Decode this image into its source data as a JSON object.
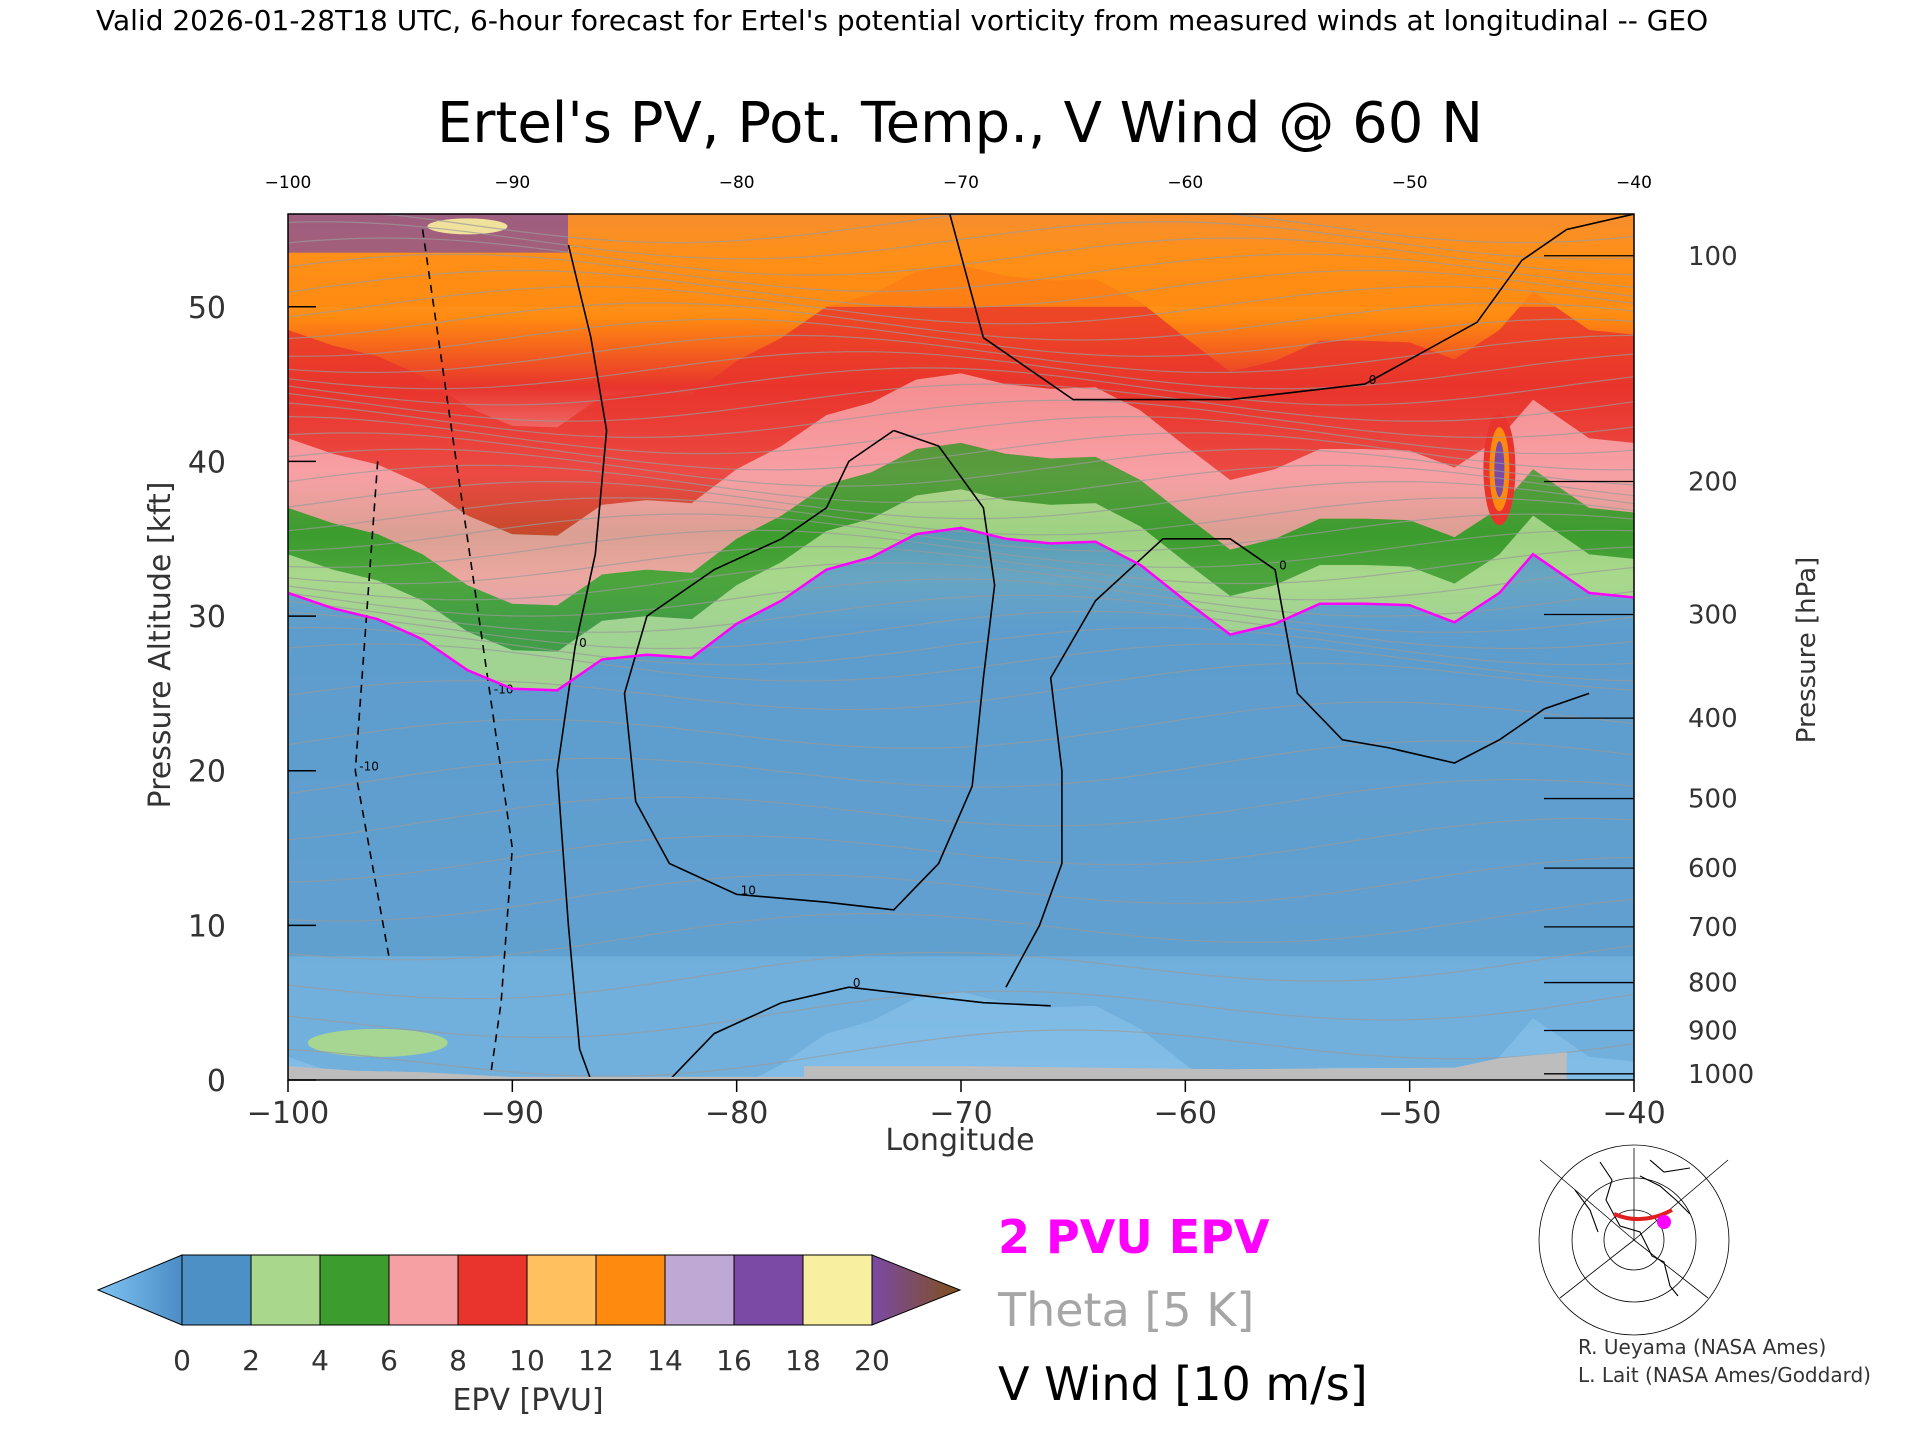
{
  "header": {
    "valid_line": "Valid 2026-01-28T18 UTC, 6-hour forecast for Ertel's potential vorticity from measured winds at longitudinal -- GEO"
  },
  "chart_data": {
    "type": "heatmap",
    "title": "Ertel's PV, Pot. Temp., V Wind @ 60 N",
    "xlabel": "Longitude",
    "ylabel_left": "Pressure Altitude [kft]",
    "ylabel_right": "Pressure [hPa]",
    "xlim": [
      -100,
      -40
    ],
    "ylim_kft": [
      0,
      56
    ],
    "x_ticks": [
      -100,
      -90,
      -80,
      -70,
      -60,
      -50,
      -40
    ],
    "y_ticks_kft": [
      0,
      10,
      20,
      30,
      40,
      50
    ],
    "pressure_ticks": [
      {
        "hPa": 1000,
        "kft": 0.4
      },
      {
        "hPa": 900,
        "kft": 3.2
      },
      {
        "hPa": 800,
        "kft": 6.3
      },
      {
        "hPa": 700,
        "kft": 9.9
      },
      {
        "hPa": 600,
        "kft": 13.7
      },
      {
        "hPa": 500,
        "kft": 18.2
      },
      {
        "hPa": 400,
        "kft": 23.4
      },
      {
        "hPa": 300,
        "kft": 30.1
      },
      {
        "hPa": 200,
        "kft": 38.7
      },
      {
        "hPa": 100,
        "kft": 53.3
      }
    ],
    "tropopause_2pvu_kft": [
      [
        -100,
        31.5
      ],
      [
        -98,
        30.5
      ],
      [
        -96,
        29.8
      ],
      [
        -94,
        28.5
      ],
      [
        -92,
        26.5
      ],
      [
        -90,
        25.3
      ],
      [
        -88,
        25.2
      ],
      [
        -86,
        27.2
      ],
      [
        -84,
        27.5
      ],
      [
        -82,
        27.3
      ],
      [
        -80,
        29.5
      ],
      [
        -78,
        31.0
      ],
      [
        -76,
        33.0
      ],
      [
        -74,
        33.8
      ],
      [
        -72,
        35.3
      ],
      [
        -70,
        35.7
      ],
      [
        -68,
        35.0
      ],
      [
        -66,
        34.7
      ],
      [
        -64,
        34.8
      ],
      [
        -62,
        33.3
      ],
      [
        -60,
        31.0
      ],
      [
        -58,
        28.8
      ],
      [
        -56,
        29.5
      ],
      [
        -54,
        30.8
      ],
      [
        -52,
        30.8
      ],
      [
        -50,
        30.7
      ],
      [
        -48,
        29.6
      ],
      [
        -46,
        31.5
      ],
      [
        -44.5,
        34.0
      ],
      [
        -42,
        31.5
      ],
      [
        -40,
        31.2
      ]
    ],
    "vwind_contours": [
      {
        "label": "0",
        "points": [
          [
            -87.5,
            54
          ],
          [
            -86.5,
            48
          ],
          [
            -85.8,
            42
          ],
          [
            -86.3,
            34
          ],
          [
            -87.2,
            28
          ],
          [
            -88,
            20
          ],
          [
            -87.5,
            10
          ],
          [
            -87,
            2
          ],
          [
            -86.5,
            0
          ]
        ]
      },
      {
        "label": "0",
        "points": [
          [
            -83,
            0
          ],
          [
            -81,
            3
          ],
          [
            -78,
            5
          ],
          [
            -75,
            6
          ],
          [
            -72,
            5.5
          ],
          [
            -69,
            5
          ],
          [
            -66,
            4.8
          ]
        ]
      },
      {
        "label": "10",
        "points": [
          [
            -73,
            42
          ],
          [
            -75,
            40
          ],
          [
            -76,
            37
          ],
          [
            -78,
            35
          ],
          [
            -81,
            33
          ],
          [
            -84,
            30
          ],
          [
            -85,
            25
          ],
          [
            -84.5,
            18
          ],
          [
            -83,
            14
          ],
          [
            -80,
            12
          ],
          [
            -76,
            11.5
          ],
          [
            -73,
            11
          ],
          [
            -71,
            14
          ],
          [
            -69.5,
            19
          ],
          [
            -69,
            26
          ],
          [
            -68.5,
            32
          ],
          [
            -69,
            37
          ],
          [
            -71,
            41
          ],
          [
            -73,
            42
          ]
        ]
      },
      {
        "label": "0",
        "points": [
          [
            -68,
            6
          ],
          [
            -66.5,
            10
          ],
          [
            -65.5,
            14
          ],
          [
            -65.5,
            20
          ],
          [
            -66,
            26
          ],
          [
            -64,
            31
          ],
          [
            -61,
            35
          ],
          [
            -58,
            35
          ],
          [
            -56,
            33
          ],
          [
            -55,
            25
          ],
          [
            -53,
            22
          ],
          [
            -51,
            21.5
          ],
          [
            -48,
            20.5
          ],
          [
            -46,
            22
          ],
          [
            -44,
            24
          ],
          [
            -42,
            25
          ]
        ]
      },
      {
        "label": "0",
        "points": [
          [
            -70.5,
            56
          ],
          [
            -69,
            48
          ],
          [
            -65,
            44
          ],
          [
            -58,
            44
          ],
          [
            -52,
            45
          ],
          [
            -47,
            49
          ],
          [
            -45,
            53
          ],
          [
            -43,
            55
          ],
          [
            -40,
            56
          ]
        ]
      },
      {
        "label": "-10",
        "points": [
          [
            -94,
            55
          ],
          [
            -93,
            45
          ],
          [
            -92,
            35
          ],
          [
            -91,
            25
          ],
          [
            -90,
            15
          ],
          [
            -90.5,
            5
          ],
          [
            -91,
            0
          ]
        ]
      },
      {
        "label": "-10",
        "points": [
          [
            -96,
            40
          ],
          [
            -96.5,
            30
          ],
          [
            -97,
            20
          ],
          [
            -96,
            12
          ],
          [
            -95.5,
            8
          ]
        ]
      }
    ],
    "colorbar": {
      "label": "EPV [PVU]",
      "ticks": [
        0,
        2,
        4,
        6,
        8,
        10,
        12,
        14,
        16,
        18,
        20
      ],
      "colors": [
        "#4c90c6",
        "#a9d88c",
        "#3c9c2e",
        "#f7a0a4",
        "#e8342c",
        "#ffc060",
        "#ff8a10",
        "#c0a8d4",
        "#7a4aa4",
        "#f8f0a0"
      ],
      "under_color": "#7fc4f4",
      "over_color": "#80501a"
    }
  },
  "legend": {
    "pvu": "2 PVU EPV",
    "theta": "Theta [5 K]",
    "vwind": "V Wind [10 m/s]",
    "pvu_color": "#ff00ff",
    "theta_color": "#a6a6a6"
  },
  "credits": {
    "line1": "R. Ueyama (NASA Ames)",
    "line2": "L. Lait (NASA Ames/Goddard)"
  }
}
